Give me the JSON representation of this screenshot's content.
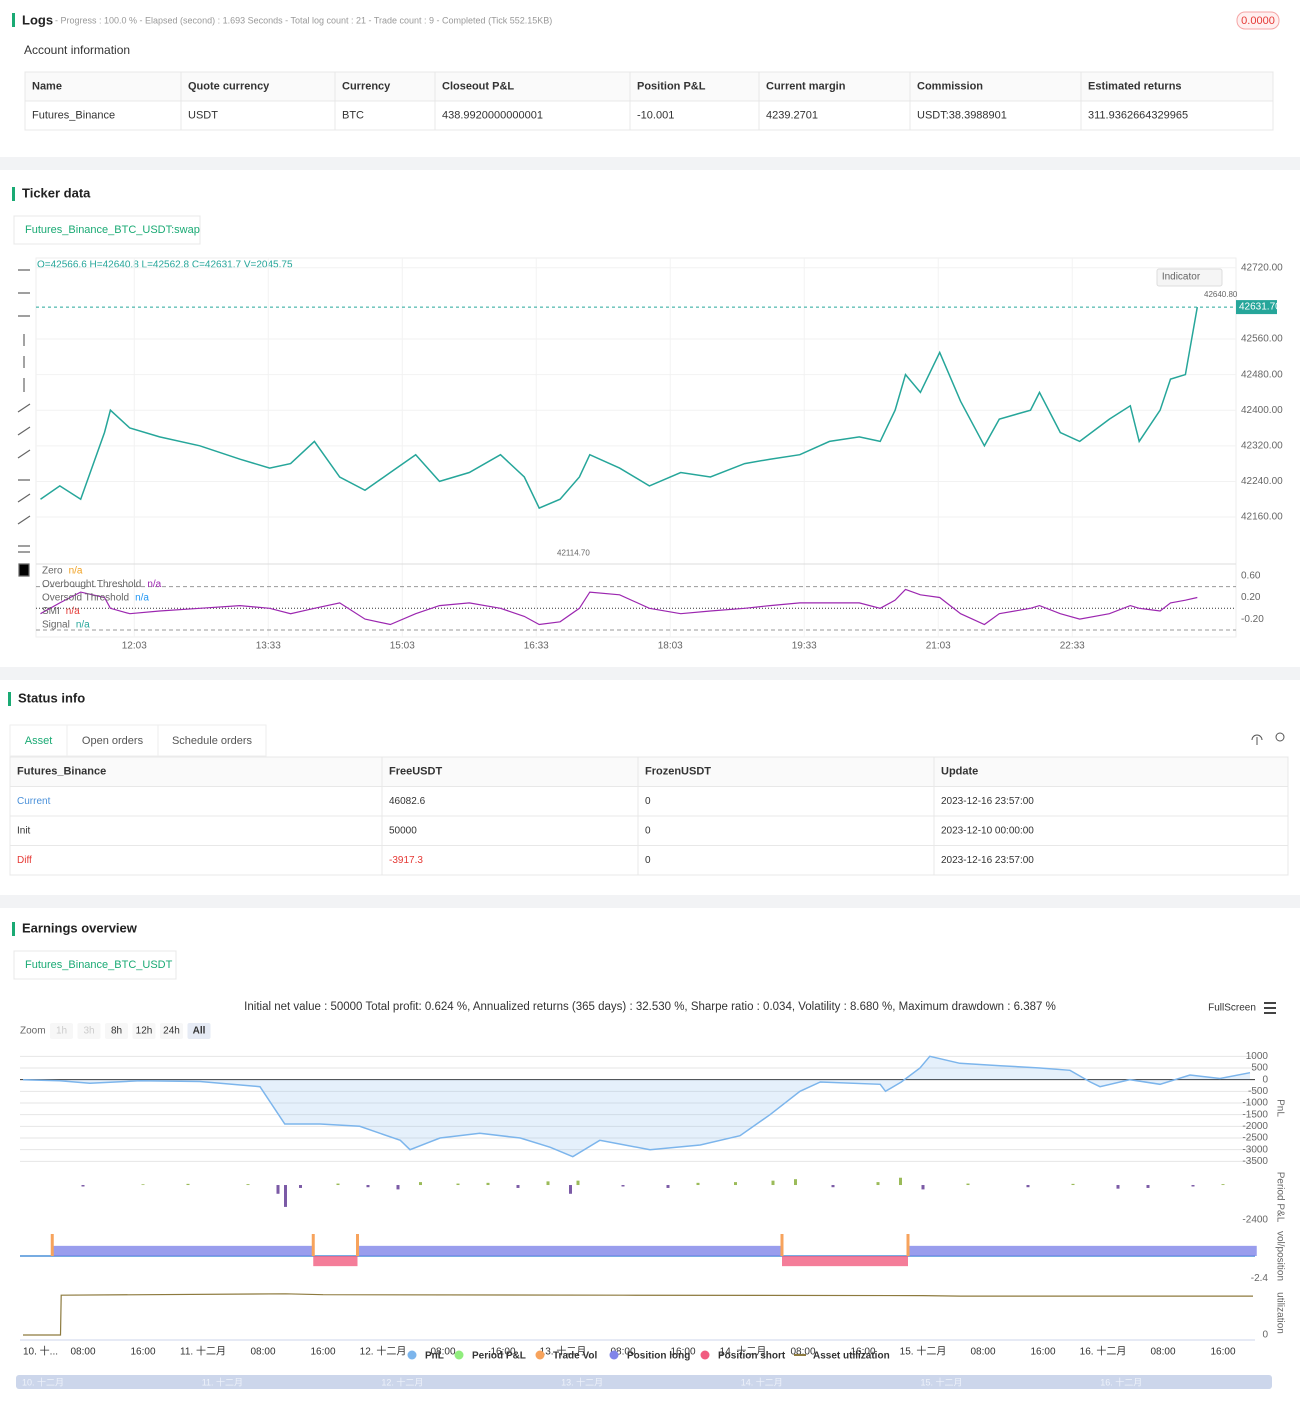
{
  "logs": {
    "title": "Logs",
    "summary": "- Progress : 100.0 % - Elapsed (second) : 1.693  Seconds - Total log count : 21 - Trade count : 9 - Completed (Tick 552.15KB)",
    "badge": "0.0000"
  },
  "account": {
    "title": "Account information",
    "table": {
      "columns": [
        "Name",
        "Quote currency",
        "Currency",
        "Closeout P&L",
        "Position P&L",
        "Current margin",
        "Commission",
        "Estimated returns"
      ],
      "rows": [
        [
          "Futures_Binance",
          "USDT",
          "BTC",
          "438.9920000000001",
          "-10.001",
          "4239.2701",
          "USDT:38.3988901",
          "311.9362664329965"
        ]
      ]
    }
  },
  "ticker": {
    "title": "Ticker data",
    "tab": "Futures_Binance_BTC_USDT:swap",
    "ohlc": "O=42566.6 H=42640.8 L=42562.8 C=42631.7 V=2045.75",
    "indicator_button": "Indicator",
    "price_chart": {
      "type": "line",
      "color": "#26a69a",
      "grid": true,
      "x": [
        660,
        673,
        687,
        703,
        707,
        720,
        740,
        767,
        794,
        814,
        828,
        844,
        861,
        878,
        895,
        912,
        928,
        948,
        969,
        985,
        995,
        1009,
        1022,
        1029,
        1049,
        1069,
        1090,
        1110,
        1133,
        1150,
        1170,
        1190,
        1210,
        1224,
        1234,
        1241,
        1251,
        1264,
        1278,
        1294,
        1304,
        1325,
        1331,
        1345,
        1358,
        1378,
        1392,
        1398,
        1412,
        1419,
        1429,
        1437
      ],
      "values": [
        42200,
        42230,
        42200,
        42350,
        42400,
        42360,
        42340,
        42320,
        42290,
        42270,
        42280,
        42330,
        42250,
        42220,
        42260,
        42300,
        42240,
        42260,
        42300,
        42250,
        42180,
        42200,
        42250,
        42300,
        42270,
        42230,
        42260,
        42250,
        42280,
        42290,
        42300,
        42330,
        42340,
        42330,
        42400,
        42480,
        42440,
        42530,
        42420,
        42320,
        42380,
        42400,
        42440,
        42350,
        42330,
        42380,
        42410,
        42330,
        42400,
        42470,
        42480,
        42631.7
      ],
      "xlim": [
        657,
        1463
      ],
      "ylim": [
        42059,
        42742
      ],
      "xticks": [
        {
          "value": 723,
          "label": "12:03"
        },
        {
          "value": 813,
          "label": "13:33"
        },
        {
          "value": 903,
          "label": "15:03"
        },
        {
          "value": 993,
          "label": "16:33"
        },
        {
          "value": 1083,
          "label": "18:03"
        },
        {
          "value": 1173,
          "label": "19:33"
        },
        {
          "value": 1263,
          "label": "21:03"
        },
        {
          "value": 1353,
          "label": "22:33"
        }
      ],
      "yticks": [
        {
          "value": 42160,
          "label": "42160.00"
        },
        {
          "value": 42240,
          "label": "42240.00"
        },
        {
          "value": 42320,
          "label": "42320.00"
        },
        {
          "value": 42400,
          "label": "42400.00"
        },
        {
          "value": 42480,
          "label": "42480.00"
        },
        {
          "value": 42560,
          "label": "42560.00"
        },
        {
          "value": 42720,
          "label": "42720.00"
        }
      ],
      "last_price": {
        "value": 42631.7,
        "label": "42631.70"
      },
      "high": {
        "value": 42640.8,
        "label": "42640.80"
      },
      "low": {
        "value": 42114.7,
        "label": "42114.70"
      }
    },
    "indicator_chart": {
      "type": "line",
      "color": "#9c27b0",
      "legend": [
        {
          "name": "Zero",
          "value": "n/a",
          "color": "#f0a020"
        },
        {
          "name": "Overbought Threshold",
          "value": "n/a",
          "color": "#9c27b0"
        },
        {
          "name": "Oversold Threshold",
          "value": "n/a",
          "color": "#2196f3"
        },
        {
          "name": "SMI",
          "value": "n/a",
          "color": "#e53935"
        },
        {
          "name": "Signal",
          "value": "n/a",
          "color": "#26a69a"
        }
      ],
      "x": [
        660,
        673,
        687,
        703,
        707,
        720,
        740,
        767,
        794,
        814,
        828,
        844,
        861,
        878,
        895,
        912,
        928,
        948,
        969,
        985,
        995,
        1009,
        1022,
        1029,
        1049,
        1069,
        1090,
        1110,
        1133,
        1150,
        1170,
        1190,
        1210,
        1224,
        1234,
        1241,
        1251,
        1264,
        1278,
        1294,
        1304,
        1325,
        1331,
        1345,
        1358,
        1378,
        1392,
        1398,
        1412,
        1419,
        1429,
        1437
      ],
      "values": [
        -0.1,
        0.1,
        0.3,
        0.2,
        0.0,
        -0.1,
        -0.05,
        0.0,
        0.05,
        0.0,
        -0.1,
        0.0,
        0.1,
        -0.2,
        -0.3,
        -0.1,
        0.05,
        0.1,
        0.0,
        -0.15,
        -0.3,
        -0.25,
        0.0,
        0.3,
        0.25,
        0.0,
        -0.1,
        -0.05,
        0.0,
        0.05,
        0.1,
        0.1,
        0.1,
        0.0,
        0.15,
        0.35,
        0.25,
        0.2,
        -0.1,
        -0.3,
        -0.1,
        0.0,
        0.05,
        -0.1,
        -0.2,
        -0.1,
        0.05,
        0.0,
        -0.05,
        0.1,
        0.15,
        0.2
      ],
      "ylim": [
        -0.53,
        0.8
      ],
      "yticks": [
        {
          "value": 0.6,
          "label": "0.60"
        },
        {
          "value": 0.2,
          "label": "0.20"
        },
        {
          "value": -0.2,
          "label": "-0.20"
        }
      ],
      "thresholds": [
        0.4,
        0,
        -0.4
      ]
    }
  },
  "status": {
    "title": "Status info",
    "tabs": [
      "Asset",
      "Open orders",
      "Schedule orders"
    ],
    "table": {
      "columns": [
        "Futures_Binance",
        "FreeUSDT",
        "FrozenUSDT",
        "Update"
      ],
      "rows": [
        [
          "Current",
          "46082.6",
          "0",
          "2023-12-16 23:57:00"
        ],
        [
          "Init",
          "50000",
          "0",
          "2023-12-10 00:00:00"
        ],
        [
          "Diff",
          "-3917.3",
          "0",
          "2023-12-16 23:57:00"
        ]
      ]
    }
  },
  "earnings": {
    "title": "Earnings overview",
    "tab": "Futures_Binance_BTC_USDT",
    "summary": "Initial net value : 50000 Total profit: 0.624 %, Annualized returns (365 days) : 32.530 %, Sharpe ratio : 0.034, Volatility : 8.680 %, Maximum drawdown : 6.387 %",
    "fullscreen": "FullScreen",
    "zoom_label": "Zoom",
    "zoom_buttons": [
      "1h",
      "3h",
      "8h",
      "12h",
      "24h",
      "All"
    ],
    "legend": [
      {
        "name": "PnL",
        "color": "#7cb5ec"
      },
      {
        "name": "Period P&L",
        "color": "#90ed7d"
      },
      {
        "name": "Trade Vol",
        "color": "#f7a35c"
      },
      {
        "name": "Position long",
        "color": "#8085e9"
      },
      {
        "name": "Position short",
        "color": "#f15c80"
      },
      {
        "name": "Asset utilization",
        "color": "#8d7a3e"
      }
    ],
    "xlim": [
      0,
      164
    ],
    "xticks": [
      {
        "value": 0,
        "label": "10. 十..."
      },
      {
        "value": 8,
        "label": "08:00"
      },
      {
        "value": 16,
        "label": "16:00"
      },
      {
        "value": 24,
        "label": "11. 十二月"
      },
      {
        "value": 32,
        "label": "08:00"
      },
      {
        "value": 40,
        "label": "16:00"
      },
      {
        "value": 48,
        "label": "12. 十二月"
      },
      {
        "value": 56,
        "label": "08:00"
      },
      {
        "value": 64,
        "label": "16:00"
      },
      {
        "value": 72,
        "label": "13. 十二月"
      },
      {
        "value": 80,
        "label": "08:00"
      },
      {
        "value": 88,
        "label": "16:00"
      },
      {
        "value": 96,
        "label": "14. 十二月"
      },
      {
        "value": 104,
        "label": "08:00"
      },
      {
        "value": 112,
        "label": "16:00"
      },
      {
        "value": 120,
        "label": "15. 十二月"
      },
      {
        "value": 128,
        "label": "08:00"
      },
      {
        "value": 136,
        "label": "16:00"
      },
      {
        "value": 144,
        "label": "16. 十二月"
      },
      {
        "value": 152,
        "label": "08:00"
      },
      {
        "value": 160,
        "label": "16:00"
      }
    ],
    "pnl": {
      "type": "area",
      "axis_label": "PnL",
      "x": [
        0,
        4.9,
        8.9,
        15.6,
        23.6,
        31.6,
        34.9,
        39.6,
        44.9,
        50.3,
        51.6,
        55.6,
        60.9,
        66.3,
        70.3,
        73.3,
        76.9,
        83.6,
        90.3,
        95.6,
        99.6,
        103.6,
        106.3,
        114.3,
        115,
        117.1,
        119.6,
        120.9,
        124.9,
        130.3,
        135.6,
        139.6,
        142.3,
        143.6,
        147.6,
        151.6,
        155.6,
        159.6,
        163.6
      ],
      "values": [
        0,
        -50,
        -150,
        -50,
        -80,
        -300,
        -1900,
        -1900,
        -2000,
        -2600,
        -3000,
        -2500,
        -2300,
        -2500,
        -2900,
        -3300,
        -2600,
        -3000,
        -2800,
        -2400,
        -1500,
        -500,
        -100,
        -200,
        -500,
        -100,
        500,
        1000,
        700,
        600,
        500,
        400,
        -100,
        -300,
        0,
        -200,
        200,
        50,
        300
      ],
      "ylim": [
        -3700,
        1100
      ],
      "yticks": [
        1000,
        500,
        0,
        -500,
        -1000,
        -1500,
        -2000,
        -2500,
        -3000,
        -3500
      ]
    },
    "period_pnl": {
      "type": "bar",
      "axis_label": "Period P&L",
      "x": [
        8,
        16,
        22,
        30,
        34,
        35,
        37,
        42,
        46,
        50,
        53,
        58,
        62,
        66,
        70,
        73,
        74,
        80,
        86,
        90,
        95,
        100,
        103,
        108,
        114,
        117,
        120,
        126,
        134,
        140,
        146,
        150,
        156,
        160
      ],
      "values": [
        -100,
        50,
        80,
        60,
        -600,
        -1500,
        -200,
        100,
        -150,
        -300,
        200,
        100,
        150,
        -200,
        250,
        -600,
        300,
        -100,
        -200,
        150,
        200,
        300,
        400,
        -150,
        200,
        500,
        -300,
        100,
        -150,
        80,
        -250,
        -200,
        -100,
        60
      ],
      "ylim": [
        -2740,
        1030
      ],
      "yticks": [
        -2400
      ]
    },
    "position": {
      "type": "range",
      "axis_label": "vol/position",
      "x_start": [
        3.9,
        38.7,
        44.6,
        101.2,
        118
      ],
      "x_end": [
        38.7,
        44.6,
        101.2,
        118,
        164.5
      ],
      "values": [
        1.1,
        -1.1,
        1.1,
        -1.1,
        1.1
      ],
      "ylim": [
        -2.6,
        2.6
      ],
      "yticks": [
        -2.4
      ]
    },
    "utilization": {
      "type": "line",
      "axis_label": "utilization",
      "x": [
        0,
        5,
        5.1,
        35,
        40,
        80,
        120,
        125,
        164
      ],
      "values": [
        0,
        0,
        0.89,
        0.92,
        0.9,
        0.89,
        0.88,
        0.87,
        0.87
      ],
      "ylim": [
        0,
        1.05
      ],
      "yticks": [
        0
      ]
    },
    "navigator_labels": [
      "10. 十二月",
      "11. 十二月",
      "12. 十二月",
      "13. 十二月",
      "14. 十二月",
      "15. 十二月",
      "16. 十二月"
    ]
  }
}
